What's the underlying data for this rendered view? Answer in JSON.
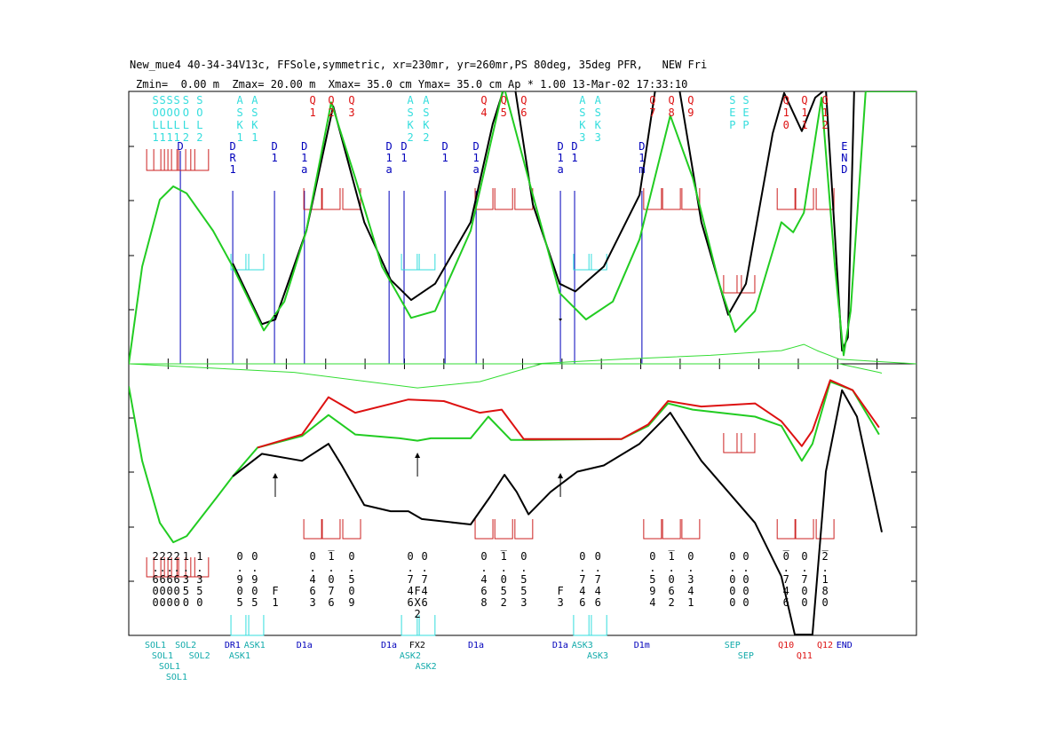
{
  "header": {
    "line1": "New_mue4 40-34-34V13c, FFSole,symmetric, xr=230mr, yr=260mr,PS 80deg, 35deg PFR,   NEW Fri",
    "line2": "Zmin=  0.00 m  Zmax= 20.00 m  Xmax= 35.0 cm Ymax= 35.0 cm Ap * 1.00 13-Mar-02 17:33:10"
  },
  "chart_data": {
    "type": "line",
    "xlim": [
      0,
      20
    ],
    "upper_ylim": [
      0,
      35
    ],
    "lower_ylim": [
      -35,
      0
    ],
    "colors": {
      "black": "#000000",
      "green": "#22cc22",
      "red": "#dd1111",
      "thin_green": "#33dd33",
      "cyan": "#33dddd",
      "blue": "#0000bb",
      "magnet": "#cc2222"
    },
    "series": [
      {
        "panel": "upper",
        "color": "black",
        "points": [
          [
            2.64,
            12.9
          ],
          [
            3.38,
            5.1
          ],
          [
            3.72,
            5.7
          ],
          [
            4.51,
            17.1
          ],
          [
            5.19,
            33.1
          ],
          [
            5.98,
            18.2
          ],
          [
            6.65,
            10.8
          ],
          [
            7.17,
            8.2
          ],
          [
            7.78,
            10.3
          ],
          [
            8.68,
            18.2
          ],
          [
            9.24,
            30.8
          ],
          [
            9.52,
            35.3
          ],
          [
            9.81,
            35.3
          ],
          [
            10.26,
            20.5
          ],
          [
            10.94,
            10.3
          ],
          [
            11.34,
            9.3
          ],
          [
            12.06,
            12.5
          ],
          [
            12.97,
            21.7
          ],
          [
            13.37,
            35.3
          ],
          [
            13.98,
            35.3
          ],
          [
            14.54,
            18.2
          ],
          [
            15.22,
            6.3
          ],
          [
            15.67,
            10.3
          ],
          [
            16.35,
            29.6
          ],
          [
            16.64,
            34.8
          ],
          [
            17.09,
            29.9
          ],
          [
            17.43,
            34.2
          ],
          [
            17.7,
            35.3
          ],
          [
            18.11,
            1.7
          ],
          [
            18.26,
            3.4
          ],
          [
            18.42,
            35.3
          ]
        ]
      },
      {
        "panel": "upper",
        "color": "green",
        "points": [
          [
            0,
            0
          ],
          [
            0.34,
            12.5
          ],
          [
            0.79,
            21.1
          ],
          [
            1.13,
            22.8
          ],
          [
            1.47,
            21.9
          ],
          [
            2.14,
            17.1
          ],
          [
            2.64,
            12.5
          ],
          [
            3.43,
            4.3
          ],
          [
            3.95,
            8.0
          ],
          [
            4.51,
            17.1
          ],
          [
            5.14,
            33.6
          ],
          [
            5.75,
            23.9
          ],
          [
            6.43,
            12.5
          ],
          [
            7.17,
            5.9
          ],
          [
            7.78,
            6.8
          ],
          [
            8.68,
            17.1
          ],
          [
            9.52,
            35.7
          ],
          [
            10.26,
            21.7
          ],
          [
            10.94,
            9.1
          ],
          [
            11.61,
            5.7
          ],
          [
            12.29,
            8.0
          ],
          [
            12.97,
            16.0
          ],
          [
            13.75,
            31.9
          ],
          [
            14.32,
            23.9
          ],
          [
            14.99,
            10.3
          ],
          [
            15.4,
            4.1
          ],
          [
            15.9,
            6.8
          ],
          [
            16.57,
            18.2
          ],
          [
            16.87,
            16.9
          ],
          [
            17.14,
            19.4
          ],
          [
            17.59,
            34.2
          ],
          [
            17.93,
            12.5
          ],
          [
            18.15,
            1.1
          ],
          [
            18.33,
            6.8
          ],
          [
            18.71,
            35
          ],
          [
            20,
            35
          ]
        ]
      },
      {
        "panel": "upper",
        "color": "thin_green",
        "points": [
          [
            0,
            0
          ],
          [
            6.76,
            0
          ],
          [
            10.26,
            0
          ],
          [
            12.51,
            0.6
          ],
          [
            14.77,
            1.1
          ],
          [
            16.57,
            1.7
          ],
          [
            17.14,
            2.5
          ],
          [
            17.48,
            1.7
          ],
          [
            18.04,
            0.6
          ],
          [
            20,
            0
          ]
        ]
      },
      {
        "panel": "lower",
        "color": "thin_green",
        "points": [
          [
            0,
            0
          ],
          [
            4.2,
            -1.1
          ],
          [
            7.33,
            -3.1
          ],
          [
            8.91,
            -2.3
          ],
          [
            10.49,
            0
          ],
          [
            18.04,
            0
          ],
          [
            19.05,
            -1.1
          ],
          [
            19.12,
            -1.2
          ]
        ]
      },
      {
        "panel": "lower",
        "color": "green",
        "points": [
          [
            0,
            -2.9
          ],
          [
            0.34,
            -12.5
          ],
          [
            0.79,
            -20.5
          ],
          [
            1.13,
            -23.0
          ],
          [
            1.47,
            -22.2
          ],
          [
            2.25,
            -17.1
          ],
          [
            2.64,
            -14.5
          ],
          [
            3.27,
            -10.8
          ],
          [
            4.4,
            -9.3
          ],
          [
            5.07,
            -6.6
          ],
          [
            5.75,
            -9.1
          ],
          [
            6.88,
            -9.6
          ],
          [
            7.33,
            -9.9
          ],
          [
            7.67,
            -9.6
          ],
          [
            8.68,
            -9.6
          ],
          [
            9.13,
            -6.8
          ],
          [
            9.7,
            -9.8
          ],
          [
            10.26,
            -9.8
          ],
          [
            12.51,
            -9.7
          ],
          [
            13.19,
            -8.0
          ],
          [
            13.69,
            -5.1
          ],
          [
            14.32,
            -5.9
          ],
          [
            15.9,
            -6.8
          ],
          [
            16.57,
            -8.0
          ],
          [
            17.09,
            -12.5
          ],
          [
            17.36,
            -10.3
          ],
          [
            17.81,
            -2.3
          ],
          [
            18.38,
            -3.4
          ],
          [
            19.05,
            -9.1
          ]
        ]
      },
      {
        "panel": "lower",
        "color": "red",
        "points": [
          [
            3.27,
            -10.8
          ],
          [
            4.4,
            -9.1
          ],
          [
            5.07,
            -4.3
          ],
          [
            5.75,
            -6.3
          ],
          [
            7.1,
            -4.6
          ],
          [
            8.0,
            -4.8
          ],
          [
            8.91,
            -6.3
          ],
          [
            9.47,
            -5.9
          ],
          [
            10.03,
            -9.7
          ],
          [
            12.51,
            -9.7
          ],
          [
            13.19,
            -7.8
          ],
          [
            13.69,
            -4.8
          ],
          [
            14.54,
            -5.5
          ],
          [
            15.9,
            -5.1
          ],
          [
            16.57,
            -7.4
          ],
          [
            17.09,
            -10.6
          ],
          [
            17.36,
            -8.6
          ],
          [
            17.81,
            -2.1
          ],
          [
            18.38,
            -3.4
          ],
          [
            19.05,
            -8.2
          ]
        ]
      },
      {
        "panel": "lower",
        "color": "black",
        "points": [
          [
            2.64,
            -14.5
          ],
          [
            3.38,
            -11.6
          ],
          [
            4.4,
            -12.5
          ],
          [
            5.07,
            -10.3
          ],
          [
            5.41,
            -13.1
          ],
          [
            5.98,
            -18.2
          ],
          [
            6.65,
            -19.0
          ],
          [
            7.1,
            -19.0
          ],
          [
            7.44,
            -20.0
          ],
          [
            8.68,
            -20.7
          ],
          [
            9.18,
            -17.1
          ],
          [
            9.54,
            -14.3
          ],
          [
            9.85,
            -16.5
          ],
          [
            10.15,
            -19.4
          ],
          [
            10.71,
            -16.5
          ],
          [
            11.39,
            -13.9
          ],
          [
            12.06,
            -13.1
          ],
          [
            12.97,
            -10.3
          ],
          [
            13.75,
            -6.3
          ],
          [
            14.54,
            -12.5
          ],
          [
            15.9,
            -20.5
          ],
          [
            16.57,
            -27.4
          ],
          [
            16.91,
            -34.9
          ],
          [
            17.36,
            -34.9
          ],
          [
            17.7,
            -13.9
          ],
          [
            18.11,
            -3.4
          ],
          [
            18.49,
            -6.8
          ],
          [
            19.12,
            -21.7
          ]
        ]
      }
    ],
    "top_labels": [
      {
        "t": "SOL1",
        "z": 0.68,
        "c": "cyan"
      },
      {
        "t": "SOL1",
        "z": 0.86,
        "c": "cyan"
      },
      {
        "t": "SOL1",
        "z": 1.04,
        "c": "cyan"
      },
      {
        "t": "SOL1",
        "z": 1.22,
        "c": "cyan"
      },
      {
        "t": "SOL2",
        "z": 1.45,
        "c": "cyan"
      },
      {
        "t": "SOL2",
        "z": 1.8,
        "c": "cyan"
      },
      {
        "t": "ASK1",
        "z": 2.82,
        "c": "cyan"
      },
      {
        "t": "ASK1",
        "z": 3.2,
        "c": "cyan"
      },
      {
        "t": "Q1",
        "z": 4.67,
        "c": "red"
      },
      {
        "t": "Q2",
        "z": 5.14,
        "c": "red"
      },
      {
        "t": "Q3",
        "z": 5.66,
        "c": "red"
      },
      {
        "t": "ASK2",
        "z": 7.15,
        "c": "cyan"
      },
      {
        "t": "ASK2",
        "z": 7.55,
        "c": "cyan"
      },
      {
        "t": "Q4",
        "z": 9.02,
        "c": "red"
      },
      {
        "t": "Q5",
        "z": 9.52,
        "c": "red"
      },
      {
        "t": "Q6",
        "z": 10.03,
        "c": "red"
      },
      {
        "t": "ASK3",
        "z": 11.52,
        "c": "cyan"
      },
      {
        "t": "ASK3",
        "z": 11.91,
        "c": "cyan"
      },
      {
        "t": "Q7",
        "z": 13.3,
        "c": "red"
      },
      {
        "t": "Q8",
        "z": 13.78,
        "c": "red"
      },
      {
        "t": "Q9",
        "z": 14.27,
        "c": "red"
      },
      {
        "t": "SEP",
        "z": 15.33,
        "c": "cyan"
      },
      {
        "t": "SEP",
        "z": 15.67,
        "c": "cyan"
      },
      {
        "t": "Q10",
        "z": 16.69,
        "c": "red"
      },
      {
        "t": "Q11",
        "z": 17.16,
        "c": "red"
      },
      {
        "t": "Q12",
        "z": 17.68,
        "c": "red"
      }
    ],
    "drift_labels": [
      {
        "t": "D",
        "z": 1.31
      },
      {
        "t": "DR1",
        "z": 2.64
      },
      {
        "t": "D1",
        "z": 3.7
      },
      {
        "t": "D1a",
        "z": 4.46
      },
      {
        "t": "D1a",
        "z": 6.61
      },
      {
        "t": "D1",
        "z": 6.99
      },
      {
        "t": "D1",
        "z": 8.03
      },
      {
        "t": "D1a",
        "z": 8.82
      },
      {
        "t": "D1a",
        "z": 10.96
      },
      {
        "t": "D1",
        "z": 11.32
      },
      {
        "t": "D1m",
        "z": 13.03
      },
      {
        "t": "END",
        "z": 18.17
      }
    ],
    "bottom_labels": [
      {
        "t": "2.600",
        "z": 0.68
      },
      {
        "t": "2.600",
        "z": 0.86
      },
      {
        "t": "2.600",
        "z": 1.04
      },
      {
        "t": "2.600",
        "z": 1.22
      },
      {
        "t": "1.350",
        "z": 1.45
      },
      {
        "t": "1.350",
        "z": 1.8
      },
      {
        "t": "0.905",
        "z": 2.82
      },
      {
        "t": "0.905",
        "z": 3.2
      },
      {
        "t": "F1",
        "z": 3.72,
        "f": true
      },
      {
        "t": "0.463",
        "z": 4.67
      },
      {
        "t": "-1.076",
        "z": 5.14
      },
      {
        "t": "0.509",
        "z": 5.66
      },
      {
        "t": "0.746",
        "z": 7.15
      },
      {
        "t": "FX2",
        "z": 7.33,
        "f": true
      },
      {
        "t": "0.746",
        "z": 7.51
      },
      {
        "t": "0.468",
        "z": 9.02
      },
      {
        "t": "-1.052",
        "z": 9.52
      },
      {
        "t": "0.553",
        "z": 10.03
      },
      {
        "t": "F3",
        "z": 10.96,
        "f": true
      },
      {
        "t": "0.746",
        "z": 11.52
      },
      {
        "t": "0.746",
        "z": 11.91
      },
      {
        "t": "0.594",
        "z": 13.3
      },
      {
        "t": "-1.062",
        "z": 13.78
      },
      {
        "t": "0.341",
        "z": 14.27
      },
      {
        "t": "0.000",
        "z": 15.33
      },
      {
        "t": "0.000",
        "z": 15.67
      },
      {
        "t": "-0.746",
        "z": 16.69
      },
      {
        "t": "0.700",
        "z": 17.16
      },
      {
        "t": "-2.180",
        "z": 17.68
      }
    ]
  }
}
